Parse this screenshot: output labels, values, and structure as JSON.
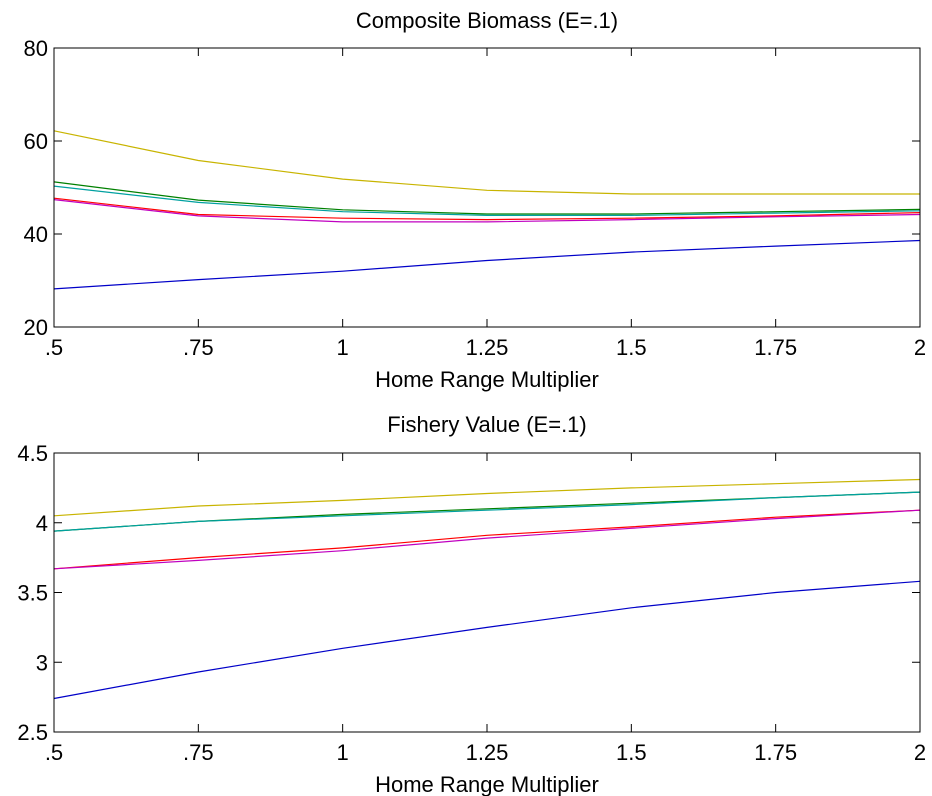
{
  "chart_data": [
    {
      "type": "line",
      "title": "Composite Biomass (E=.1)",
      "xlabel": "Home Range Multiplier",
      "ylabel": "",
      "x": [
        0.5,
        0.75,
        1,
        1.25,
        1.5,
        1.75,
        2
      ],
      "xticks": [
        0.5,
        0.75,
        1,
        1.25,
        1.5,
        1.75,
        2
      ],
      "xticklabels": [
        ".5",
        ".75",
        "1",
        "1.25",
        "1.5",
        "1.75",
        "2"
      ],
      "yticks": [
        20,
        40,
        60,
        80
      ],
      "yticklabels": [
        "20",
        "40",
        "60",
        "80"
      ],
      "xlim": [
        0.5,
        2
      ],
      "ylim": [
        20,
        80
      ],
      "grid": false,
      "series": [
        {
          "color": "#c8b400",
          "values": [
            62.2,
            55.8,
            51.8,
            49.4,
            48.6,
            48.6,
            48.6
          ]
        },
        {
          "color": "#008000",
          "values": [
            51.2,
            47.3,
            45.2,
            44.3,
            44.3,
            44.8,
            45.3
          ]
        },
        {
          "color": "#00a0a0",
          "values": [
            50.3,
            46.8,
            44.8,
            44.0,
            44.0,
            44.5,
            45.0
          ]
        },
        {
          "color": "#ff0000",
          "values": [
            47.7,
            44.2,
            43.4,
            43.1,
            43.4,
            43.9,
            44.6
          ]
        },
        {
          "color": "#c000c0",
          "values": [
            47.4,
            43.9,
            42.6,
            42.6,
            43.1,
            43.7,
            44.2
          ]
        },
        {
          "color": "#0000c8",
          "values": [
            28.2,
            30.2,
            32.0,
            34.3,
            36.1,
            37.4,
            38.6
          ]
        }
      ]
    },
    {
      "type": "line",
      "title": "Fishery Value (E=.1)",
      "xlabel": "Home Range Multiplier",
      "ylabel": "",
      "x": [
        0.5,
        0.75,
        1,
        1.25,
        1.5,
        1.75,
        2
      ],
      "xticks": [
        0.5,
        0.75,
        1,
        1.25,
        1.5,
        1.75,
        2
      ],
      "xticklabels": [
        ".5",
        ".75",
        "1",
        "1.25",
        "1.5",
        "1.75",
        "2"
      ],
      "yticks": [
        2.5,
        3,
        3.5,
        4,
        4.5
      ],
      "yticklabels": [
        "2.5",
        "3",
        "3.5",
        "4",
        "4.5"
      ],
      "xlim": [
        0.5,
        2
      ],
      "ylim": [
        2.5,
        4.5
      ],
      "grid": false,
      "series": [
        {
          "color": "#c8b400",
          "values": [
            4.05,
            4.12,
            4.16,
            4.21,
            4.25,
            4.28,
            4.31
          ]
        },
        {
          "color": "#008000",
          "values": [
            3.94,
            4.01,
            4.06,
            4.1,
            4.14,
            4.18,
            4.22
          ]
        },
        {
          "color": "#00a0a0",
          "values": [
            3.94,
            4.01,
            4.05,
            4.09,
            4.13,
            4.18,
            4.22
          ]
        },
        {
          "color": "#ff0000",
          "values": [
            3.67,
            3.75,
            3.82,
            3.91,
            3.97,
            4.04,
            4.09
          ]
        },
        {
          "color": "#c000c0",
          "values": [
            3.67,
            3.73,
            3.8,
            3.89,
            3.96,
            4.03,
            4.09
          ]
        },
        {
          "color": "#0000c8",
          "values": [
            2.74,
            2.93,
            3.1,
            3.25,
            3.39,
            3.5,
            3.58
          ]
        }
      ]
    }
  ]
}
